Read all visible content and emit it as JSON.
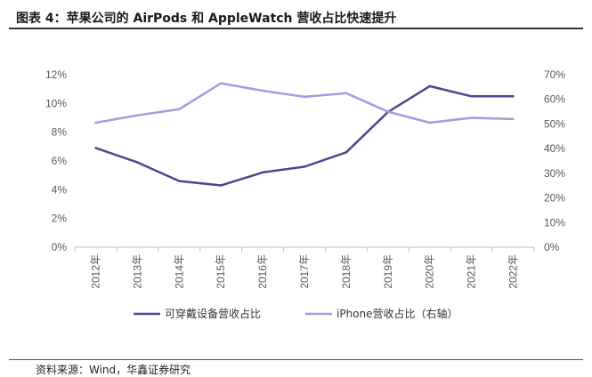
{
  "header": {
    "title": "图表 4：苹果公司的 AirPods 和 AppleWatch 营收占比快速提升"
  },
  "footer": {
    "source": "资料来源：Wind，华鑫证券研究"
  },
  "colors": {
    "series_wearables": "#5B3F8F",
    "series_iphone": "#AD96DD",
    "axis": "#BFBFBF",
    "tick_text": "#595959"
  },
  "chart_data": {
    "type": "line",
    "title": "苹果公司的 AirPods 和 AppleWatch 营收占比快速提升",
    "categories": [
      "2012年",
      "2013年",
      "2014年",
      "2015年",
      "2016年",
      "2017年",
      "2018年",
      "2019年",
      "2020年",
      "2021年",
      "2022年"
    ],
    "series": [
      {
        "name": "可穿戴设备营收占比",
        "axis": "left",
        "values": [
          6.9,
          5.9,
          4.6,
          4.3,
          5.2,
          5.6,
          6.6,
          9.4,
          11.2,
          10.5,
          10.5
        ]
      },
      {
        "name": "iPhone营收占比（右轴）",
        "axis": "right",
        "values": [
          50.5,
          53.5,
          56,
          66.5,
          63.5,
          61,
          62.5,
          55,
          50.5,
          52.5,
          52
        ]
      }
    ],
    "y_left": {
      "min": 0,
      "max": 12,
      "step": 2,
      "tick_labels": [
        "0%",
        "2%",
        "4%",
        "6%",
        "8%",
        "10%",
        "12%"
      ]
    },
    "y_right": {
      "min": 0,
      "max": 70,
      "step": 10,
      "tick_labels": [
        "0%",
        "10%",
        "20%",
        "30%",
        "40%",
        "50%",
        "60%",
        "70%"
      ]
    },
    "xlabel": "",
    "ylabel": "",
    "grid": false,
    "legend_position": "bottom-center"
  }
}
